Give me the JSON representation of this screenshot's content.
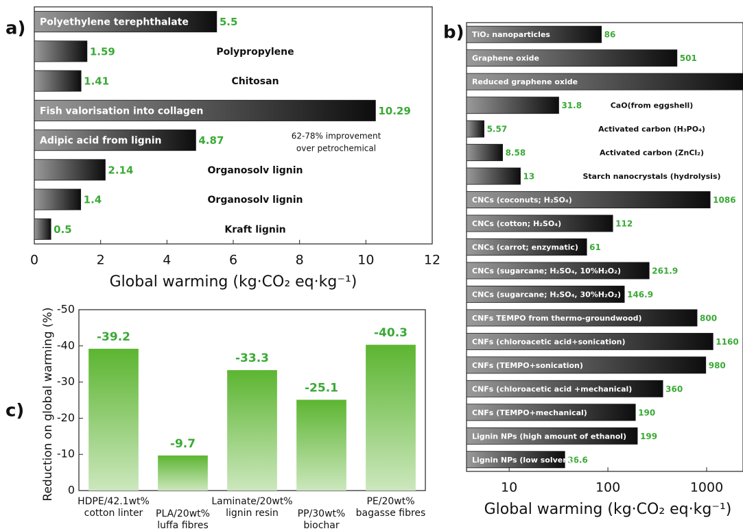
{
  "chart_data": [
    {
      "type": "hbar",
      "panel": "a)",
      "x_label": "Global warming (kg·CO₂ eq·kg⁻¹)",
      "categories": [
        "Polyethylene terephthalate",
        "Polypropylene",
        "Chitosan",
        "Fish valorisation into collagen",
        "Adipic acid from lignin",
        "Organosolv lignin",
        "Organosolv lignin",
        "Kraft lignin"
      ],
      "values": [
        5.5,
        1.59,
        1.41,
        10.29,
        4.87,
        2.14,
        1.4,
        0.5
      ],
      "label_position": [
        "inside",
        "outside",
        "outside",
        "inside",
        "inside",
        "outside",
        "outside",
        "outside"
      ],
      "annotation": [
        "62-78% improvement",
        "over petrochemical"
      ],
      "xlim": [
        0,
        12
      ],
      "xticks": [
        0,
        2,
        4,
        6,
        8,
        10,
        12
      ],
      "log": false,
      "color": "#1a1a1a",
      "value_color": "#3aaa35"
    },
    {
      "type": "hbar",
      "panel": "b)",
      "x_label": "Global warming (kg·CO₂ eq·kg⁻¹)",
      "categories": [
        "TiO₂ nanoparticles",
        "Graphene oxide",
        "Reduced graphene oxide",
        "CaO(from eggshell)",
        "Activated carbon (H₃PO₄)",
        "Activated carbon (ZnCl₂)",
        "Starch nanocrystals (hydrolysis)",
        "CNCs (coconuts; H₂SO₄)",
        "CNCs (cotton; H₂SO₄)",
        "CNCs (carrot; enzymatic)",
        "CNCs (sugarcane; H₂SO₄, 10%H₂O₂)",
        "CNCs (sugarcane; H₂SO₄, 30%H₂O₂)",
        "CNFs TEMPO from thermo-groundwood)",
        "CNFs (chloroacetic acid+sonication)",
        "CNFs (TEMPO+sonication)",
        "CNFs (chloroacetic acid +mechanical)",
        "CNFs (TEMPO+mechanical)",
        "Lignin NPs (high amount of ethanol)",
        "Lignin NPs (low solvent)"
      ],
      "values": [
        86,
        501,
        2360,
        31.8,
        5.57,
        8.58,
        13,
        1086,
        112,
        61,
        261.9,
        146.9,
        800,
        1160,
        980,
        360,
        190,
        199,
        36.6
      ],
      "label_position": [
        "inside",
        "inside",
        "inside",
        "outside",
        "outside",
        "outside",
        "outside",
        "inside",
        "inside",
        "inside",
        "inside",
        "inside",
        "inside",
        "inside",
        "inside",
        "inside",
        "inside",
        "inside",
        "inside"
      ],
      "xlim": [
        3.7,
        2335
      ],
      "xticks": [
        10,
        100,
        1000
      ],
      "log": true,
      "color": "#1a1a1a",
      "value_color": "#3aaa35"
    },
    {
      "type": "vbar",
      "panel": "c)",
      "y_label": "Reduction on global warming (%)",
      "categories": [
        "HDPE/42.1wt%\ncotton linter",
        "PLA/20wt%\nluffa fibres",
        "Laminate/20wt%\nlignin resin",
        "PP/30wt%\nbiochar",
        "PE/20wt%\nbagasse fibres"
      ],
      "values": [
        -39.2,
        -9.7,
        -33.3,
        -25.1,
        -40.3
      ],
      "ylim": [
        0,
        -50
      ],
      "yticks": [
        0,
        -10,
        -20,
        -30,
        -40,
        -50
      ],
      "color": "#5cb531",
      "value_color": "#3aaa35"
    }
  ]
}
